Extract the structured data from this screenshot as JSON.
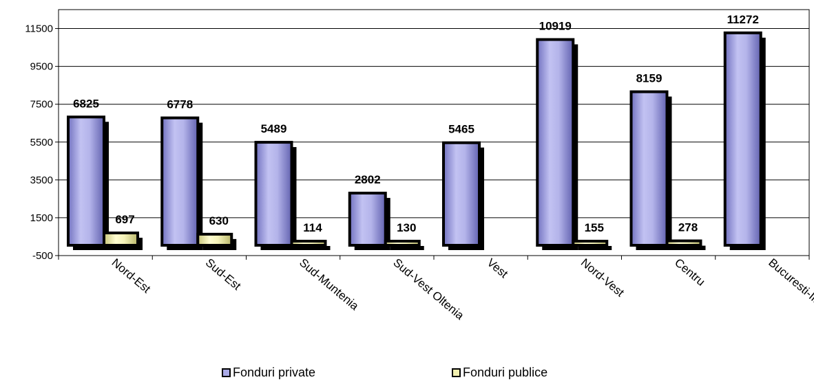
{
  "chart_data": {
    "type": "bar",
    "categories": [
      "Nord-Est",
      "Sud-Est",
      "Sud-Muntenia",
      "Sud-Vest Oltenia",
      "Vest",
      "Nord-Vest",
      "Centru",
      "Bucuresti-Ilfov"
    ],
    "series": [
      {
        "name": "Fonduri private",
        "values": [
          6825,
          6778,
          5489,
          2802,
          5465,
          10919,
          8159,
          11272
        ],
        "labels": [
          "6825",
          "6778",
          "5489",
          "2802",
          "5465",
          "10919",
          "8159",
          "11272"
        ],
        "color": "#aaaae6"
      },
      {
        "name": "Fonduri publice",
        "values": [
          697,
          630,
          114,
          130,
          0,
          155,
          278,
          0
        ],
        "labels": [
          "697",
          "630",
          "114",
          "130",
          "",
          "155",
          "278",
          ""
        ],
        "color": "#f2f0b0"
      }
    ],
    "yticks": [
      "11500",
      "9500",
      "7500",
      "5500",
      "3500",
      "1500",
      "-500"
    ],
    "ylim": [
      -500,
      12500
    ],
    "grid": true,
    "legend_position": "bottom"
  }
}
